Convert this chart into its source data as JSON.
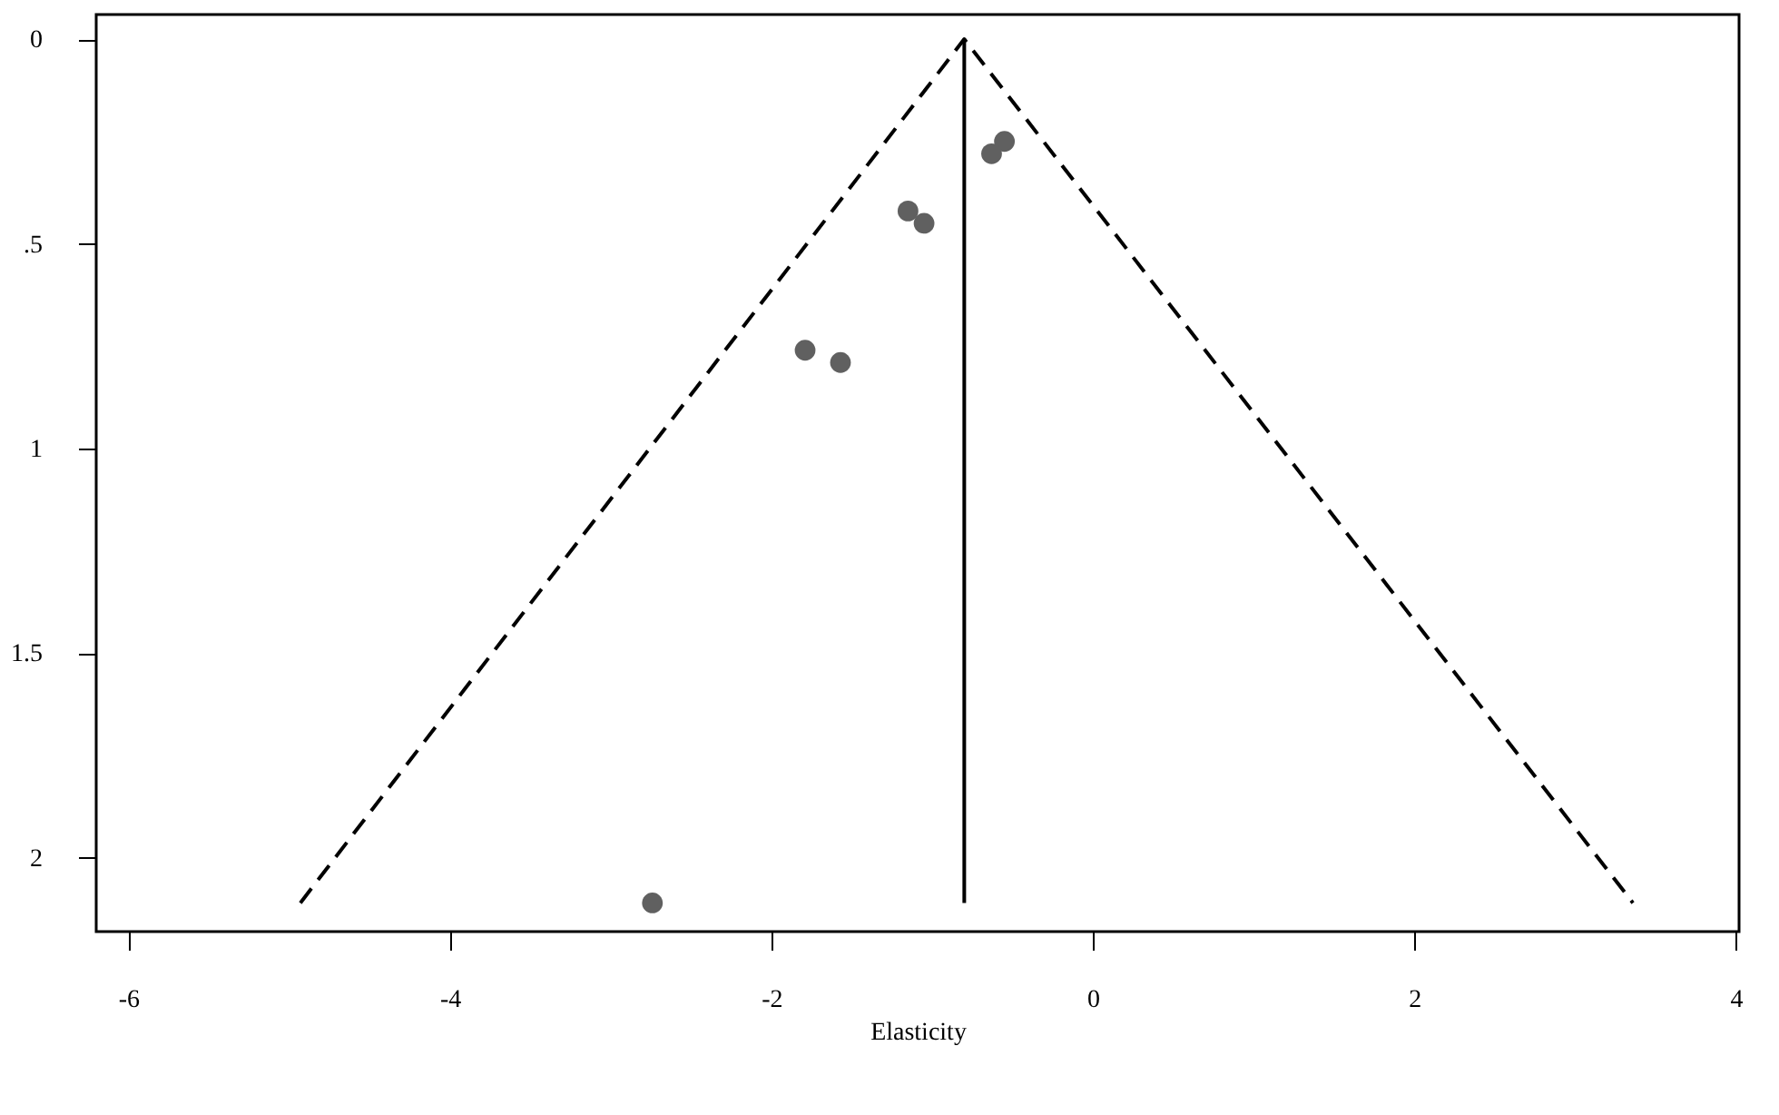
{
  "chart_data": {
    "type": "scatter",
    "xlabel": "Elasticity",
    "xlim": [
      -6.2,
      4.02
    ],
    "xticks": [
      -6,
      -4,
      -2,
      0,
      2,
      4
    ],
    "ylim": [
      2.18,
      -0.06
    ],
    "yticks": [
      0,
      {
        "value": 0.5,
        "label": ".5"
      },
      1,
      1.5,
      2
    ],
    "grid": false,
    "series": [
      {
        "color": "#606060",
        "marker": "circle",
        "x": [
          -0.55,
          -0.63,
          -1.15,
          -1.05,
          -1.79,
          -1.57,
          -2.74
        ],
        "values": [
          0.25,
          0.28,
          0.42,
          0.45,
          0.76,
          0.79,
          2.11
        ]
      },
      {
        "type": "line",
        "color": "#000000",
        "marker": "none",
        "line_style": "dashed",
        "x": [
          -4.93,
          -0.8,
          3.36
        ],
        "values": [
          2.11,
          0,
          2.11
        ]
      },
      {
        "type": "line",
        "color": "#000000",
        "marker": "none",
        "line_style": "solid",
        "x": [
          -0.8,
          -0.8
        ],
        "values": [
          0,
          2.11
        ]
      }
    ]
  }
}
